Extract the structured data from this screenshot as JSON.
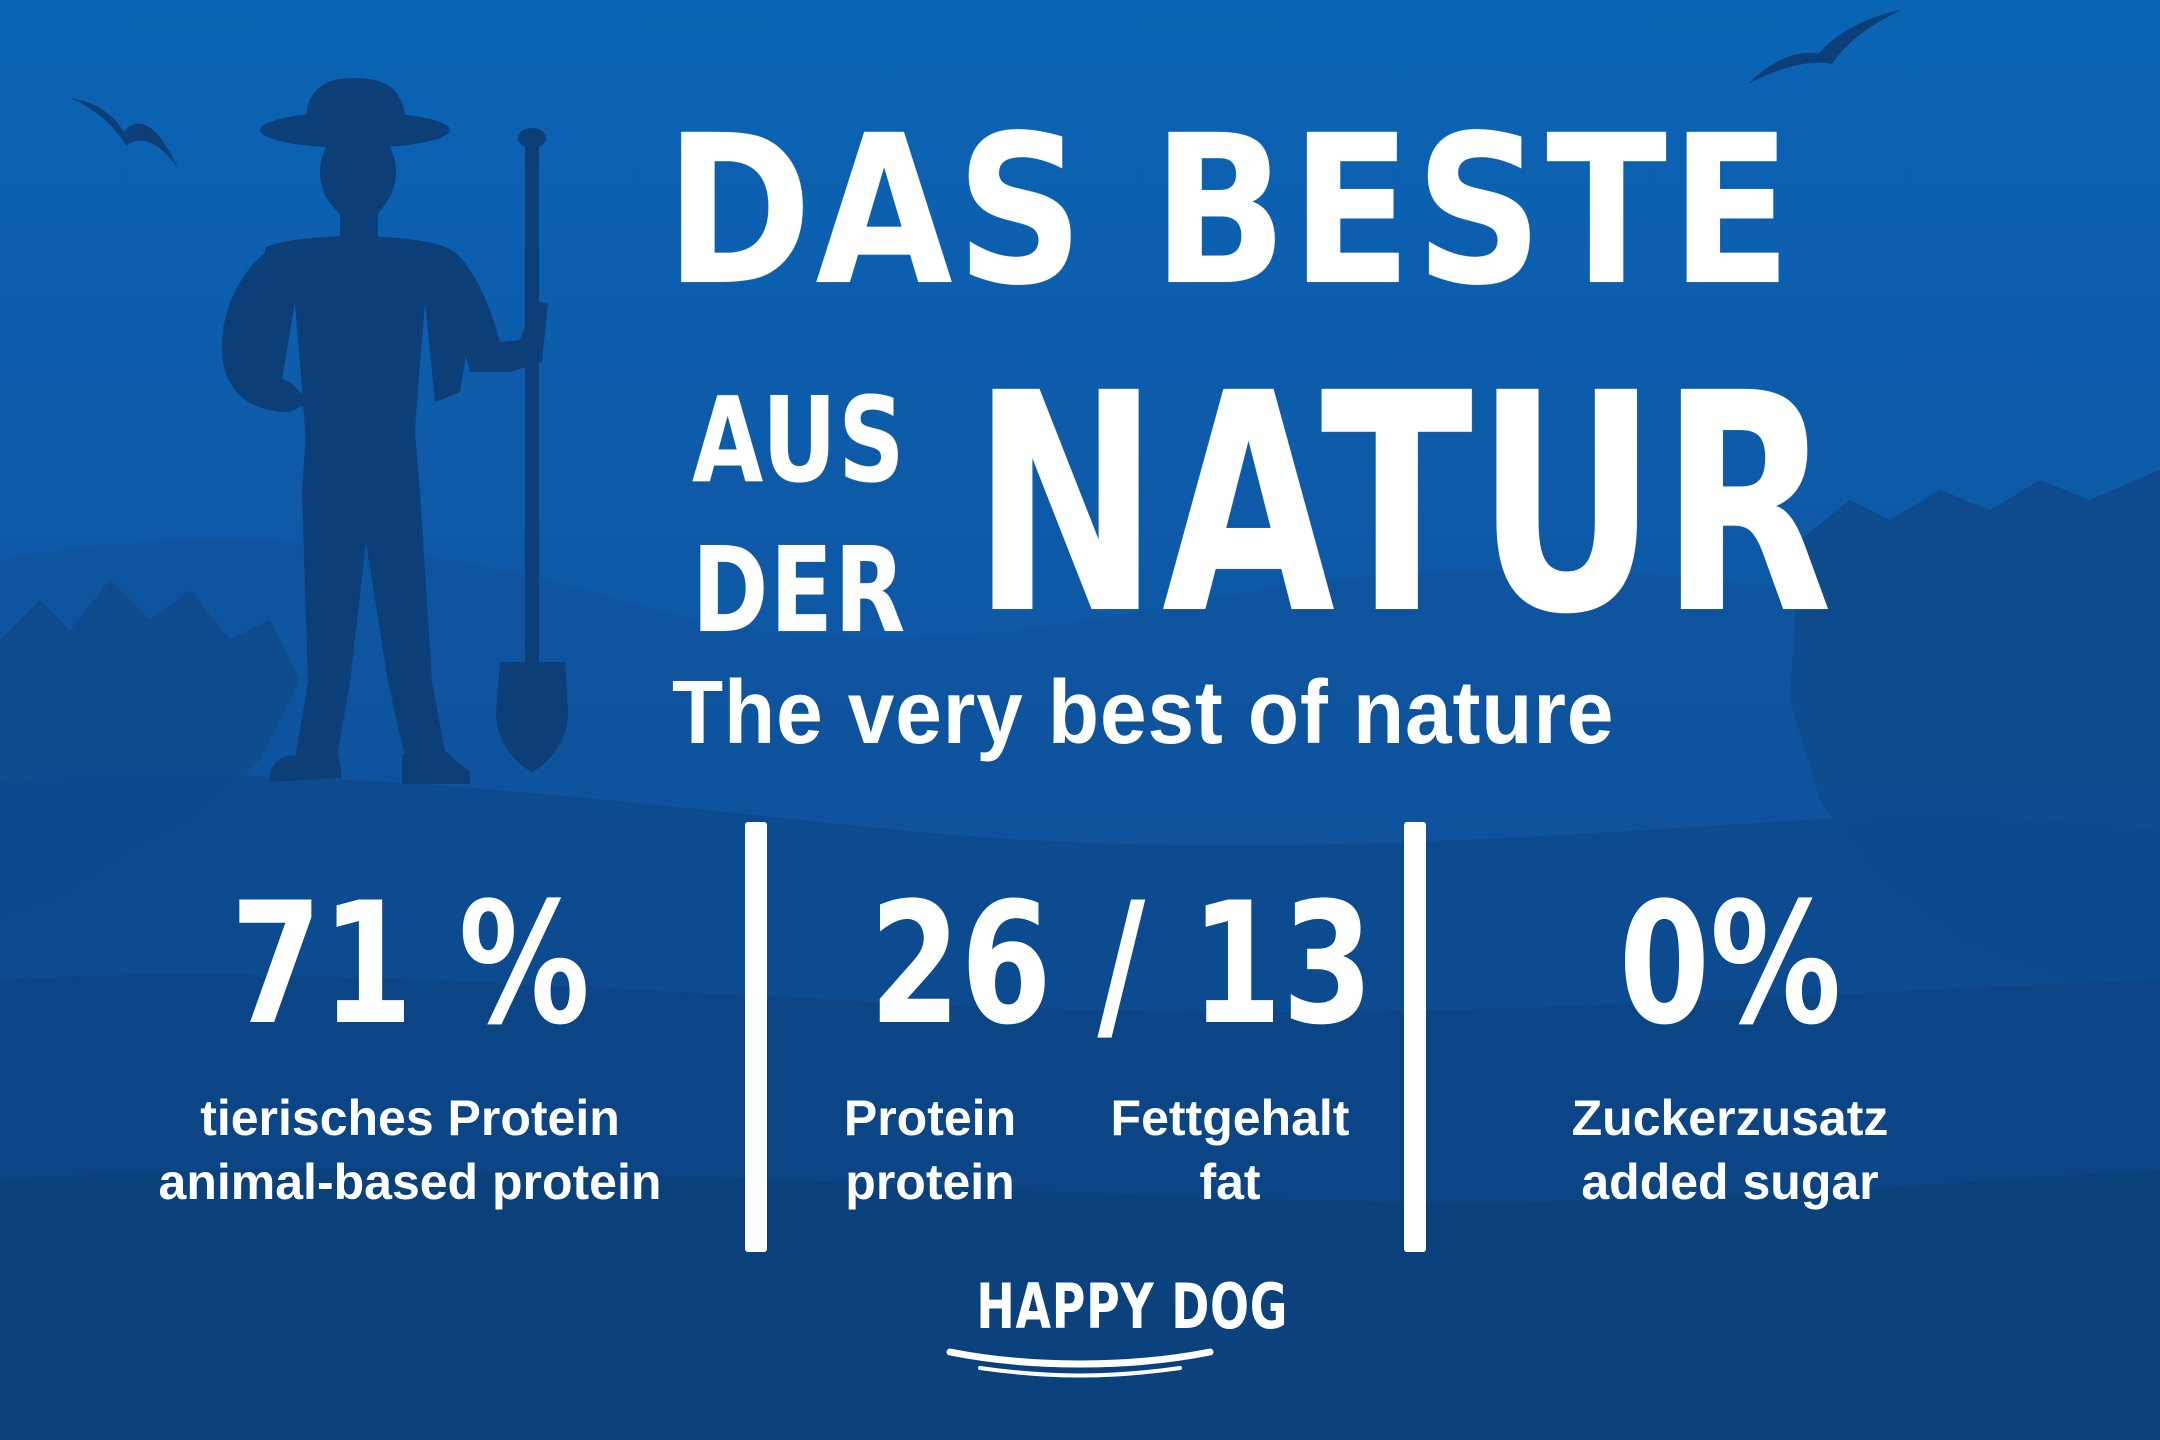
{
  "headline": {
    "line1": "DAS BESTE",
    "line2a": "AUS",
    "line2b": "DER",
    "line3": "NATUR"
  },
  "subtitle": "The very best of nature",
  "stats": [
    {
      "value": "71 %",
      "label_de": "tierisches Protein",
      "label_en": "animal-based protein"
    },
    {
      "value": "26 / 13",
      "label1_de": "Protein",
      "label1_en": "protein",
      "label2_de": "Fettgehalt",
      "label2_en": "fat"
    },
    {
      "value": "0%",
      "label_de": "Zuckerzusatz",
      "label_en": "added sugar"
    }
  ],
  "logo": {
    "text": "HAPPY DOG"
  },
  "colors": {
    "background_top": "#0a64b5",
    "background_bottom": "#0a3468",
    "text": "#ffffff",
    "silhouette": "#0c3f78"
  },
  "icons": [
    "farmer-silhouette-icon",
    "bird-icon",
    "spade-icon"
  ]
}
